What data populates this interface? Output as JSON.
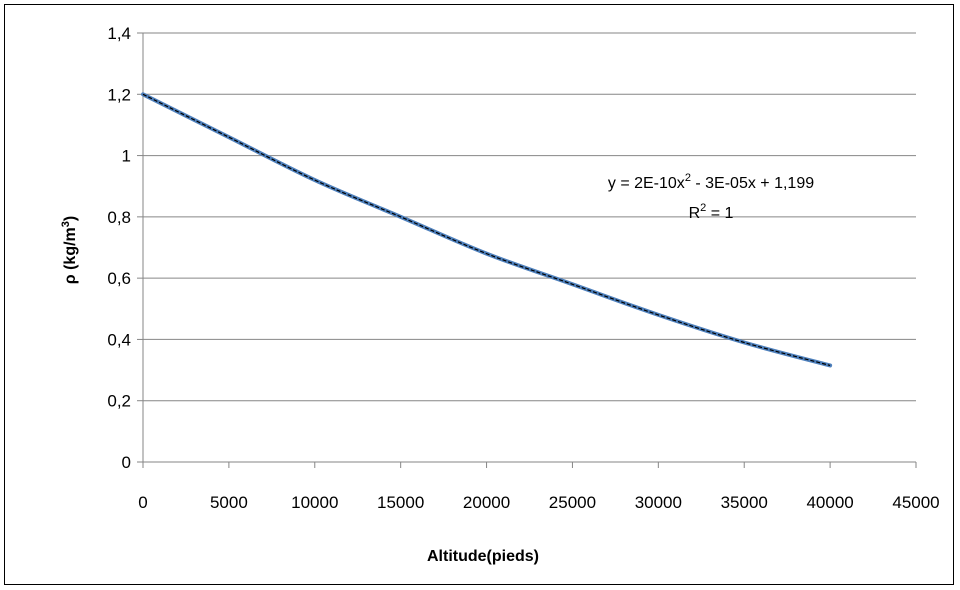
{
  "chart_data": {
    "type": "line",
    "title": "",
    "xlabel": "Altitude(pieds)",
    "ylabel_main": "ρ (kg/m",
    "ylabel_sup": "3",
    "ylabel_close": ")",
    "xlim": [
      0,
      45000
    ],
    "ylim": [
      0,
      1.4
    ],
    "x_ticks": [
      0,
      5000,
      10000,
      15000,
      20000,
      25000,
      30000,
      35000,
      40000,
      45000
    ],
    "y_ticks": [
      0,
      0.2,
      0.4,
      0.6,
      0.8,
      1,
      1.2,
      1.4
    ],
    "x_tick_labels": [
      "0",
      "5000",
      "10000",
      "15000",
      "20000",
      "25000",
      "30000",
      "35000",
      "40000",
      "45000"
    ],
    "y_tick_labels": [
      "0",
      "0,2",
      "0,4",
      "0,6",
      "0,8",
      "1",
      "1,2",
      "1,4"
    ],
    "grid": "horizontal",
    "legend": "none",
    "series": [
      {
        "color": "#4f81bd",
        "x": [
          0,
          5000,
          10000,
          15000,
          20000,
          25000,
          30000,
          35000,
          40000
        ],
        "y": [
          1.2,
          1.06,
          0.92,
          0.8,
          0.68,
          0.58,
          0.48,
          0.39,
          0.315
        ]
      }
    ],
    "trendline": {
      "type": "polynomial",
      "order": 2,
      "color": "#000000",
      "style": "dashed",
      "equation_parts": [
        "y = 2E-10x",
        "2",
        " - 3E-05x + 1,199"
      ],
      "r2_parts": [
        "R",
        "2",
        " = 1"
      ]
    }
  }
}
